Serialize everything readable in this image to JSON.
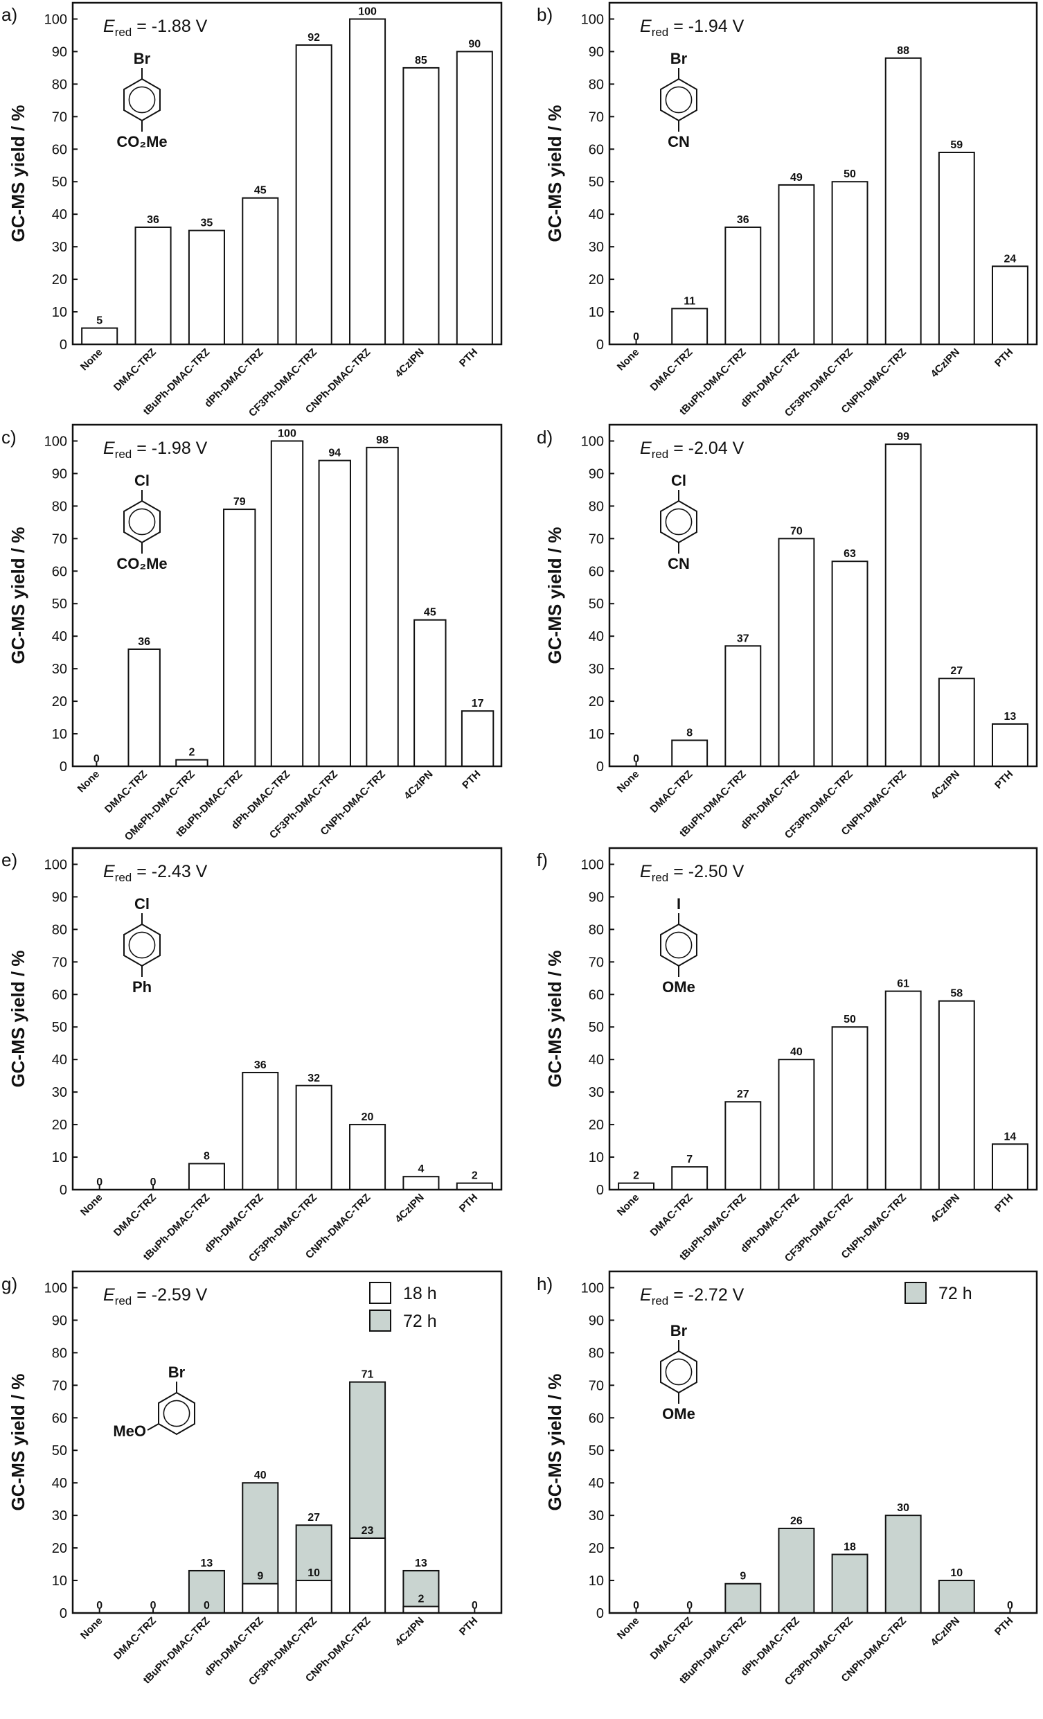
{
  "colors": {
    "bar_white": "#ffffff",
    "bar_gray": "#c9d4d0",
    "axis": "#111111"
  },
  "chart_data": [
    {
      "panel": "a)",
      "type": "bar",
      "ered_symbol": "E",
      "ered_sub": "red",
      "ered_value": " = -1.88 V",
      "substituents": [
        "Br",
        "CO₂Me"
      ],
      "ylabel": "GC-MS yield / %",
      "ylim": [
        0,
        105
      ],
      "yticks": [
        0,
        10,
        20,
        30,
        40,
        50,
        60,
        70,
        80,
        90,
        100
      ],
      "categories": [
        "None",
        "DMAC-TRZ",
        "tBuPh-DMAC-TRZ",
        "dPh-DMAC-TRZ",
        "CF3Ph-DMAC-TRZ",
        "CNPh-DMAC-TRZ",
        "4CzIPN",
        "PTH"
      ],
      "series": [
        {
          "values": [
            5,
            36,
            35,
            45,
            92,
            100,
            85,
            90
          ]
        }
      ]
    },
    {
      "panel": "b)",
      "type": "bar",
      "ered_symbol": "E",
      "ered_sub": "red",
      "ered_value": " = -1.94 V",
      "substituents": [
        "Br",
        "CN"
      ],
      "ylabel": "GC-MS yield / %",
      "ylim": [
        0,
        105
      ],
      "yticks": [
        0,
        10,
        20,
        30,
        40,
        50,
        60,
        70,
        80,
        90,
        100
      ],
      "categories": [
        "None",
        "DMAC-TRZ",
        "tBuPh-DMAC-TRZ",
        "dPh-DMAC-TRZ",
        "CF3Ph-DMAC-TRZ",
        "CNPh-DMAC-TRZ",
        "4CzIPN",
        "PTH"
      ],
      "series": [
        {
          "values": [
            0,
            11,
            36,
            49,
            50,
            88,
            59,
            24
          ]
        }
      ]
    },
    {
      "panel": "c)",
      "type": "bar",
      "ered_symbol": "E",
      "ered_sub": "red",
      "ered_value": " = -1.98 V",
      "substituents": [
        "Cl",
        "CO₂Me"
      ],
      "ylabel": "GC-MS yield / %",
      "ylim": [
        0,
        105
      ],
      "yticks": [
        0,
        10,
        20,
        30,
        40,
        50,
        60,
        70,
        80,
        90,
        100
      ],
      "categories": [
        "None",
        "DMAC-TRZ",
        "OMePh-DMAC-TRZ",
        "tBuPh-DMAC-TRZ",
        "dPh-DMAC-TRZ",
        "CF3Ph-DMAC-TRZ",
        "CNPh-DMAC-TRZ",
        "4CzIPN",
        "PTH"
      ],
      "series": [
        {
          "values": [
            0,
            36,
            2,
            79,
            100,
            94,
            98,
            45,
            17
          ]
        }
      ]
    },
    {
      "panel": "d)",
      "type": "bar",
      "ered_symbol": "E",
      "ered_sub": "red",
      "ered_value": " = -2.04 V",
      "substituents": [
        "Cl",
        "CN"
      ],
      "ylabel": "GC-MS yield / %",
      "ylim": [
        0,
        105
      ],
      "yticks": [
        0,
        10,
        20,
        30,
        40,
        50,
        60,
        70,
        80,
        90,
        100
      ],
      "categories": [
        "None",
        "DMAC-TRZ",
        "tBuPh-DMAC-TRZ",
        "dPh-DMAC-TRZ",
        "CF3Ph-DMAC-TRZ",
        "CNPh-DMAC-TRZ",
        "4CzIPN",
        "PTH"
      ],
      "series": [
        {
          "values": [
            0,
            8,
            37,
            70,
            63,
            99,
            27,
            13
          ]
        }
      ]
    },
    {
      "panel": "e)",
      "type": "bar",
      "ered_symbol": "E",
      "ered_sub": "red",
      "ered_value": " = -2.43 V",
      "substituents": [
        "Cl",
        "Ph"
      ],
      "ylabel": "GC-MS yield / %",
      "ylim": [
        0,
        105
      ],
      "yticks": [
        0,
        10,
        20,
        30,
        40,
        50,
        60,
        70,
        80,
        90,
        100
      ],
      "categories": [
        "None",
        "DMAC-TRZ",
        "tBuPh-DMAC-TRZ",
        "dPh-DMAC-TRZ",
        "CF3Ph-DMAC-TRZ",
        "CNPh-DMAC-TRZ",
        "4CzIPN",
        "PTH"
      ],
      "series": [
        {
          "values": [
            0,
            0,
            8,
            36,
            32,
            20,
            4,
            2
          ]
        }
      ]
    },
    {
      "panel": "f)",
      "type": "bar",
      "ered_symbol": "E",
      "ered_sub": "red",
      "ered_value": " = -2.50 V",
      "substituents": [
        "I",
        "OMe"
      ],
      "ylabel": "GC-MS yield / %",
      "ylim": [
        0,
        105
      ],
      "yticks": [
        0,
        10,
        20,
        30,
        40,
        50,
        60,
        70,
        80,
        90,
        100
      ],
      "categories": [
        "None",
        "DMAC-TRZ",
        "tBuPh-DMAC-TRZ",
        "dPh-DMAC-TRZ",
        "CF3Ph-DMAC-TRZ",
        "CNPh-DMAC-TRZ",
        "4CzIPN",
        "PTH"
      ],
      "series": [
        {
          "values": [
            2,
            7,
            27,
            40,
            50,
            61,
            58,
            14
          ]
        }
      ]
    },
    {
      "panel": "g)",
      "type": "bar",
      "ered_symbol": "E",
      "ered_sub": "red",
      "ered_value": " = -2.59 V",
      "substituents": [
        "Br",
        "MeO"
      ],
      "ylabel": "GC-MS yield / %",
      "ylim": [
        0,
        105
      ],
      "yticks": [
        0,
        10,
        20,
        30,
        40,
        50,
        60,
        70,
        80,
        90,
        100
      ],
      "categories": [
        "None",
        "DMAC-TRZ",
        "tBuPh-DMAC-TRZ",
        "dPh-DMAC-TRZ",
        "CF3Ph-DMAC-TRZ",
        "CNPh-DMAC-TRZ",
        "4CzIPN",
        "PTH"
      ],
      "legend": [
        {
          "label": "18 h",
          "color": "#ffffff"
        },
        {
          "label": "72 h",
          "color": "#c9d4d0"
        }
      ],
      "series": [
        {
          "name": "72 h",
          "values": [
            0,
            0,
            13,
            40,
            27,
            71,
            13,
            0
          ]
        },
        {
          "name": "18 h",
          "values": [
            null,
            null,
            0,
            9,
            10,
            23,
            2,
            null
          ]
        }
      ]
    },
    {
      "panel": "h)",
      "type": "bar",
      "ered_symbol": "E",
      "ered_sub": "red",
      "ered_value": " = -2.72 V",
      "substituents": [
        "Br",
        "OMe"
      ],
      "ylabel": "GC-MS yield / %",
      "ylim": [
        0,
        105
      ],
      "yticks": [
        0,
        10,
        20,
        30,
        40,
        50,
        60,
        70,
        80,
        90,
        100
      ],
      "categories": [
        "None",
        "DMAC-TRZ",
        "tBuPh-DMAC-TRZ",
        "dPh-DMAC-TRZ",
        "CF3Ph-DMAC-TRZ",
        "CNPh-DMAC-TRZ",
        "4CzIPN",
        "PTH"
      ],
      "legend": [
        {
          "label": "72 h",
          "color": "#c9d4d0"
        }
      ],
      "series": [
        {
          "name": "72 h",
          "values": [
            0,
            0,
            9,
            26,
            18,
            30,
            10,
            0
          ]
        }
      ]
    }
  ]
}
